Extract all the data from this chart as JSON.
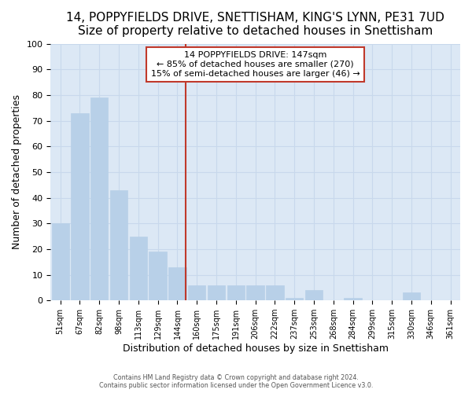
{
  "title": "14, POPPYFIELDS DRIVE, SNETTISHAM, KING'S LYNN, PE31 7UD",
  "subtitle": "Size of property relative to detached houses in Snettisham",
  "xlabel": "Distribution of detached houses by size in Snettisham",
  "ylabel": "Number of detached properties",
  "categories": [
    "51sqm",
    "67sqm",
    "82sqm",
    "98sqm",
    "113sqm",
    "129sqm",
    "144sqm",
    "160sqm",
    "175sqm",
    "191sqm",
    "206sqm",
    "222sqm",
    "237sqm",
    "253sqm",
    "268sqm",
    "284sqm",
    "299sqm",
    "315sqm",
    "330sqm",
    "346sqm",
    "361sqm"
  ],
  "values": [
    30,
    73,
    79,
    43,
    25,
    19,
    13,
    6,
    6,
    6,
    6,
    6,
    1,
    4,
    0,
    1,
    0,
    0,
    3,
    0,
    0
  ],
  "bar_color": "#b8d0e8",
  "bar_edge_color": "#b8d0e8",
  "vline_color": "#c0392b",
  "vline_pos": 6.42,
  "annotation_text": "14 POPPYFIELDS DRIVE: 147sqm\n← 85% of detached houses are smaller (270)\n15% of semi-detached houses are larger (46) →",
  "annotation_box_color": "#ffffff",
  "annotation_box_edge_color": "#c0392b",
  "ylim": [
    0,
    100
  ],
  "yticks": [
    0,
    10,
    20,
    30,
    40,
    50,
    60,
    70,
    80,
    90,
    100
  ],
  "grid_color": "#c8d8ec",
  "bg_color": "#dce8f5",
  "plot_bg_color": "#dce8f5",
  "outer_bg_color": "#ffffff",
  "footer_line1": "Contains HM Land Registry data © Crown copyright and database right 2024.",
  "footer_line2": "Contains public sector information licensed under the Open Government Licence v3.0.",
  "title_fontsize": 11,
  "subtitle_fontsize": 10
}
